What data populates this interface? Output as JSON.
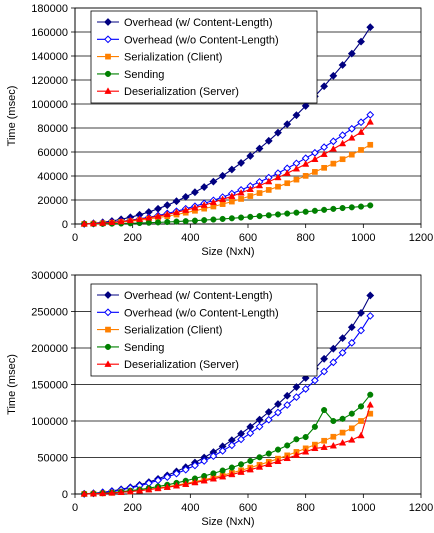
{
  "chart_data": [
    {
      "type": "line",
      "title": "",
      "xlabel": "Size (NxN)",
      "ylabel": "Time (msec)",
      "xlim": [
        0,
        1200
      ],
      "ylim": [
        0,
        180000
      ],
      "xticks": [
        0,
        200,
        400,
        600,
        800,
        1000,
        1200
      ],
      "yticks": [
        0,
        20000,
        40000,
        60000,
        80000,
        100000,
        120000,
        140000,
        160000,
        180000
      ],
      "grid": "horizontal",
      "legend_position": "top-left",
      "x": [
        32,
        64,
        96,
        128,
        160,
        192,
        224,
        256,
        288,
        320,
        352,
        384,
        416,
        448,
        480,
        512,
        544,
        576,
        608,
        640,
        672,
        704,
        736,
        768,
        800,
        832,
        864,
        896,
        928,
        960,
        992,
        1024
      ],
      "series": [
        {
          "name": "Overhead (w/ Content-Length)",
          "color": "#000080",
          "marker": "diamond-filled",
          "values": [
            150,
            600,
            1400,
            2500,
            3900,
            5600,
            7700,
            10000,
            12700,
            15700,
            19000,
            22600,
            26500,
            30800,
            35300,
            40200,
            45400,
            50900,
            56700,
            62900,
            69300,
            76100,
            83200,
            90700,
            98400,
            106400,
            114800,
            123500,
            132500,
            142000,
            152000,
            164000
          ]
        },
        {
          "name": "Overhead (w/o Content-Length)",
          "color": "#0000ff",
          "marker": "diamond-open",
          "values": [
            90,
            350,
            800,
            1400,
            2200,
            3200,
            4300,
            5600,
            7100,
            8800,
            10600,
            12700,
            14800,
            17200,
            19700,
            22400,
            25300,
            28400,
            31600,
            35100,
            38600,
            42400,
            46400,
            50500,
            54800,
            59300,
            64000,
            68900,
            74000,
            79300,
            84800,
            91000
          ]
        },
        {
          "name": "Serialization (Client)",
          "color": "#ff8000",
          "marker": "square",
          "values": [
            70,
            270,
            600,
            1050,
            1650,
            2350,
            3200,
            4200,
            5300,
            6500,
            7900,
            9400,
            11000,
            12800,
            14600,
            16600,
            18700,
            20900,
            23300,
            25800,
            28400,
            31100,
            34000,
            37000,
            40100,
            43400,
            46800,
            50300,
            54000,
            57800,
            61700,
            66000
          ]
        },
        {
          "name": "Sending",
          "color": "#008000",
          "marker": "circle",
          "values": [
            20,
            70,
            160,
            280,
            420,
            600,
            820,
            1070,
            1350,
            1660,
            2000,
            2380,
            2790,
            3230,
            3710,
            4220,
            4770,
            5350,
            5960,
            6600,
            7270,
            7970,
            8690,
            9450,
            10200,
            11000,
            11800,
            12600,
            13300,
            13900,
            14500,
            15500
          ]
        },
        {
          "name": "Deserialization (Server)",
          "color": "#ff0000",
          "marker": "triangle",
          "values": [
            80,
            320,
            730,
            1300,
            2000,
            2900,
            3950,
            5150,
            6500,
            8000,
            9700,
            11500,
            13500,
            15700,
            18000,
            20500,
            23100,
            25900,
            28900,
            32000,
            35300,
            38700,
            42300,
            46000,
            49900,
            53900,
            58100,
            62500,
            67000,
            71700,
            76500,
            85000
          ]
        }
      ]
    },
    {
      "type": "line",
      "title": "",
      "xlabel": "Size (NxN)",
      "ylabel": "Time (msec)",
      "xlim": [
        0,
        1200
      ],
      "ylim": [
        0,
        300000
      ],
      "xticks": [
        0,
        200,
        400,
        600,
        800,
        1000,
        1200
      ],
      "yticks": [
        0,
        50000,
        100000,
        150000,
        200000,
        250000,
        300000
      ],
      "grid": "horizontal",
      "legend_position": "top-left",
      "x": [
        32,
        64,
        96,
        128,
        160,
        192,
        224,
        256,
        288,
        320,
        352,
        384,
        416,
        448,
        480,
        512,
        544,
        576,
        608,
        640,
        672,
        704,
        736,
        768,
        800,
        832,
        864,
        896,
        928,
        960,
        992,
        1024
      ],
      "series": [
        {
          "name": "Overhead (w/ Content-Length)",
          "color": "#000080",
          "marker": "diamond-filled",
          "values": [
            250,
            1000,
            2300,
            4100,
            6400,
            9200,
            12500,
            16300,
            20700,
            25500,
            30900,
            36700,
            43100,
            50000,
            57400,
            65300,
            73700,
            82600,
            92000,
            101900,
            112300,
            123200,
            134600,
            146500,
            158900,
            171800,
            185200,
            199100,
            213500,
            228400,
            248000,
            272000
          ]
        },
        {
          "name": "Overhead (w/o Content-Length)",
          "color": "#0000ff",
          "marker": "diamond-open",
          "values": [
            230,
            920,
            2100,
            3700,
            5800,
            8300,
            11300,
            14800,
            18700,
            23100,
            27900,
            33200,
            39000,
            45200,
            51900,
            59100,
            66700,
            74800,
            83300,
            92300,
            101700,
            111600,
            121900,
            132700,
            143900,
            155600,
            167800,
            180400,
            193500,
            207100,
            224000,
            244000
          ]
        },
        {
          "name": "Serialization (Client)",
          "color": "#ff8000",
          "marker": "square",
          "values": [
            100,
            400,
            900,
            1600,
            2500,
            3600,
            4900,
            6400,
            8100,
            10000,
            12100,
            14400,
            16900,
            19600,
            22500,
            25600,
            28900,
            32400,
            36100,
            40000,
            44100,
            48400,
            52900,
            57600,
            62500,
            67600,
            72900,
            78400,
            84100,
            90000,
            100000,
            110000
          ]
        },
        {
          "name": "Sending",
          "color": "#008000",
          "marker": "circle",
          "values": [
            120,
            500,
            1100,
            2000,
            3100,
            4500,
            6100,
            8000,
            10200,
            12600,
            15200,
            18100,
            21200,
            24600,
            28200,
            32100,
            36200,
            40700,
            45300,
            50300,
            55400,
            60800,
            66500,
            75000,
            78000,
            92000,
            115000,
            100000,
            103000,
            110000,
            120000,
            136000
          ]
        },
        {
          "name": "Deserialization (Server)",
          "color": "#ff0000",
          "marker": "triangle",
          "values": [
            90,
            370,
            830,
            1500,
            2300,
            3300,
            4500,
            5900,
            7500,
            9200,
            11200,
            13300,
            15600,
            18100,
            20800,
            23600,
            26700,
            29900,
            33300,
            36900,
            40700,
            44700,
            48800,
            53200,
            57700,
            62500,
            64000,
            66000,
            70000,
            74000,
            80000,
            122000
          ]
        }
      ]
    }
  ]
}
